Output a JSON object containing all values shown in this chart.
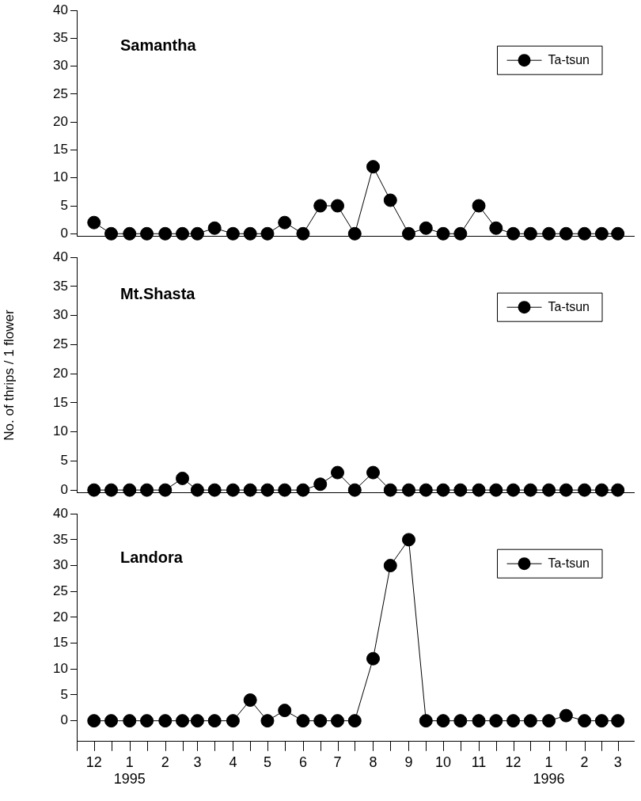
{
  "chart_data": [
    {
      "type": "line",
      "title": "Samantha",
      "x": [
        "1994-12-01",
        "1994-12-16",
        "1995-01-01",
        "1995-01-16",
        "1995-02-01",
        "1995-02-16",
        "1995-03-01",
        "1995-03-16",
        "1995-04-01",
        "1995-04-16",
        "1995-05-01",
        "1995-05-16",
        "1995-06-01",
        "1995-06-16",
        "1995-07-01",
        "1995-07-16",
        "1995-08-01",
        "1995-08-16",
        "1995-09-01",
        "1995-09-16",
        "1995-10-01",
        "1995-10-16",
        "1995-11-01",
        "1995-11-16",
        "1995-12-01",
        "1995-12-16",
        "1996-01-01",
        "1996-01-16",
        "1996-02-01",
        "1996-02-16",
        "1996-03-01"
      ],
      "series": [
        {
          "name": "Ta-tsun",
          "color": "#000000",
          "values": [
            2,
            0,
            0,
            0,
            0,
            0,
            0,
            1,
            0,
            0,
            0,
            2,
            0,
            5,
            5,
            0,
            12,
            6,
            0,
            1,
            0,
            0,
            5,
            1,
            0,
            0,
            0,
            0,
            0,
            0,
            0
          ]
        }
      ],
      "xlim": [
        "1994-11-16",
        "1996-03-15"
      ],
      "ylim": [
        -0.5,
        40
      ],
      "yticks": [
        0,
        5,
        10,
        15,
        20,
        25,
        30,
        35,
        40
      ],
      "tick_labels": "y",
      "legend": "top right",
      "marker": "circle",
      "line_style": "solid",
      "grid": false
    },
    {
      "type": "line",
      "title": "Mt.Shasta",
      "ylabel": "No. of thrips / 1 flower",
      "x": [
        "1994-12-01",
        "1994-12-16",
        "1995-01-01",
        "1995-01-16",
        "1995-02-01",
        "1995-02-16",
        "1995-03-01",
        "1995-03-16",
        "1995-04-01",
        "1995-04-16",
        "1995-05-01",
        "1995-05-16",
        "1995-06-01",
        "1995-06-16",
        "1995-07-01",
        "1995-07-16",
        "1995-08-01",
        "1995-08-16",
        "1995-09-01",
        "1995-09-16",
        "1995-10-01",
        "1995-10-16",
        "1995-11-01",
        "1995-11-16",
        "1995-12-01",
        "1995-12-16",
        "1996-01-01",
        "1996-01-16",
        "1996-02-01",
        "1996-02-16",
        "1996-03-01"
      ],
      "series": [
        {
          "name": "Ta-tsun",
          "color": "#000000",
          "values": [
            0,
            0,
            0,
            0,
            0,
            2,
            0,
            0,
            0,
            0,
            0,
            0,
            0,
            1,
            3,
            0,
            3,
            0,
            0,
            0,
            0,
            0,
            0,
            0,
            0,
            0,
            0,
            0,
            0,
            0,
            0
          ]
        }
      ],
      "xlim": [
        "1994-11-16",
        "1996-03-15"
      ],
      "ylim": [
        -0.5,
        40
      ],
      "yticks": [
        0,
        5,
        10,
        15,
        20,
        25,
        30,
        35,
        40
      ],
      "tick_labels": "y",
      "legend": "top right",
      "marker": "circle",
      "line_style": "solid",
      "grid": false
    },
    {
      "type": "line",
      "title": "Landora",
      "x": [
        "1994-12-01",
        "1994-12-16",
        "1995-01-01",
        "1995-01-16",
        "1995-02-01",
        "1995-02-16",
        "1995-03-01",
        "1995-03-16",
        "1995-04-01",
        "1995-04-16",
        "1995-05-01",
        "1995-05-16",
        "1995-06-01",
        "1995-06-16",
        "1995-07-01",
        "1995-07-16",
        "1995-08-01",
        "1995-08-16",
        "1995-09-01",
        "1995-09-16",
        "1995-10-01",
        "1995-10-16",
        "1995-11-01",
        "1995-11-16",
        "1995-12-01",
        "1995-12-16",
        "1996-01-01",
        "1996-01-16",
        "1996-02-01",
        "1996-02-16",
        "1996-03-01"
      ],
      "series": [
        {
          "name": "Ta-tsun",
          "color": "#000000",
          "values": [
            0,
            0,
            0,
            0,
            0,
            0,
            0,
            0,
            0,
            4,
            0,
            2,
            0,
            0,
            0,
            0,
            12,
            30,
            35,
            0,
            0,
            0,
            0,
            0,
            0,
            0,
            0,
            1,
            0,
            0,
            0
          ]
        }
      ],
      "xlim": [
        "1994-11-16",
        "1996-03-15"
      ],
      "ylim": [
        -4,
        40
      ],
      "yticks": [
        0,
        5,
        10,
        15,
        20,
        25,
        30,
        35,
        40
      ],
      "xticks": [
        {
          "value": "1994-11-16",
          "label": null
        },
        {
          "value": "1994-12-01",
          "label": "12"
        },
        {
          "value": "1994-12-16",
          "label": null
        },
        {
          "value": "1995-01-01",
          "label": "1\n1995"
        },
        {
          "value": "1995-01-16",
          "label": null
        },
        {
          "value": "1995-02-01",
          "label": "2"
        },
        {
          "value": "1995-02-16",
          "label": null
        },
        {
          "value": "1995-03-01",
          "label": "3"
        },
        {
          "value": "1995-03-16",
          "label": null
        },
        {
          "value": "1995-04-01",
          "label": "4"
        },
        {
          "value": "1995-04-16",
          "label": null
        },
        {
          "value": "1995-05-01",
          "label": "5"
        },
        {
          "value": "1995-05-16",
          "label": null
        },
        {
          "value": "1995-06-01",
          "label": "6"
        },
        {
          "value": "1995-06-16",
          "label": null
        },
        {
          "value": "1995-07-01",
          "label": "7"
        },
        {
          "value": "1995-07-16",
          "label": null
        },
        {
          "value": "1995-08-01",
          "label": "8"
        },
        {
          "value": "1995-08-16",
          "label": null
        },
        {
          "value": "1995-09-01",
          "label": "9"
        },
        {
          "value": "1995-09-16",
          "label": null
        },
        {
          "value": "1995-10-01",
          "label": "10"
        },
        {
          "value": "1995-10-16",
          "label": null
        },
        {
          "value": "1995-11-01",
          "label": "11"
        },
        {
          "value": "1995-11-16",
          "label": null
        },
        {
          "value": "1995-12-01",
          "label": "12"
        },
        {
          "value": "1995-12-16",
          "label": null
        },
        {
          "value": "1996-01-01",
          "label": "1\n1996"
        },
        {
          "value": "1996-01-16",
          "label": null
        },
        {
          "value": "1996-02-01",
          "label": "2"
        },
        {
          "value": "1996-02-16",
          "label": null
        },
        {
          "value": "1996-03-01",
          "label": "3"
        }
      ],
      "legend": "top right",
      "marker": "circle",
      "line_style": "solid",
      "grid": false
    }
  ]
}
